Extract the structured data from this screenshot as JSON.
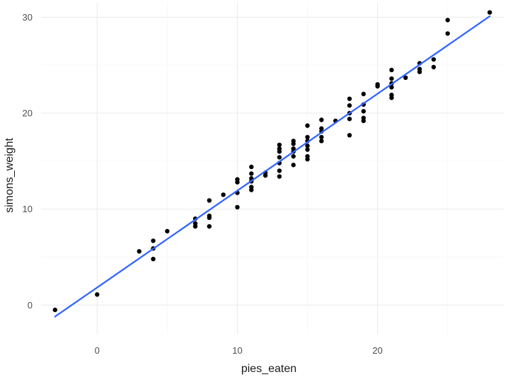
{
  "chart_data": {
    "type": "scatter",
    "title": "",
    "xlabel": "pies_eaten",
    "ylabel": "simons_weight",
    "xlim": [
      -4,
      29
    ],
    "ylim": [
      -3,
      31.5
    ],
    "x_ticks": [
      0,
      10,
      20
    ],
    "y_ticks": [
      0,
      10,
      20,
      30
    ],
    "x_minor_ticks": [
      -5,
      5,
      15,
      25
    ],
    "y_minor_ticks": [
      5,
      15,
      25
    ],
    "grid": true,
    "point_color": "#000000",
    "line_color": "#3366FF",
    "points": [
      {
        "x": -3,
        "y": -0.5
      },
      {
        "x": 0,
        "y": 1.1
      },
      {
        "x": 3,
        "y": 5.6
      },
      {
        "x": 4,
        "y": 4.8
      },
      {
        "x": 4,
        "y": 5.9
      },
      {
        "x": 4,
        "y": 6.7
      },
      {
        "x": 5,
        "y": 7.7
      },
      {
        "x": 7,
        "y": 8.2
      },
      {
        "x": 7,
        "y": 8.5
      },
      {
        "x": 7,
        "y": 9.0
      },
      {
        "x": 8,
        "y": 8.2
      },
      {
        "x": 8,
        "y": 9.1
      },
      {
        "x": 8,
        "y": 9.3
      },
      {
        "x": 8,
        "y": 10.9
      },
      {
        "x": 9,
        "y": 11.5
      },
      {
        "x": 10,
        "y": 10.2
      },
      {
        "x": 10,
        "y": 11.7
      },
      {
        "x": 10,
        "y": 12.8
      },
      {
        "x": 10,
        "y": 13.1
      },
      {
        "x": 11,
        "y": 12.0
      },
      {
        "x": 11,
        "y": 12.3
      },
      {
        "x": 11,
        "y": 12.9
      },
      {
        "x": 11,
        "y": 13.2
      },
      {
        "x": 11,
        "y": 13.7
      },
      {
        "x": 11,
        "y": 14.4
      },
      {
        "x": 12,
        "y": 13.5
      },
      {
        "x": 12,
        "y": 13.8
      },
      {
        "x": 13,
        "y": 13.4
      },
      {
        "x": 13,
        "y": 14.0
      },
      {
        "x": 13,
        "y": 14.8
      },
      {
        "x": 13,
        "y": 15.4
      },
      {
        "x": 13,
        "y": 16.0
      },
      {
        "x": 13,
        "y": 16.3
      },
      {
        "x": 13,
        "y": 16.7
      },
      {
        "x": 14,
        "y": 14.6
      },
      {
        "x": 14,
        "y": 15.5
      },
      {
        "x": 14,
        "y": 16.0
      },
      {
        "x": 14,
        "y": 16.3
      },
      {
        "x": 14,
        "y": 16.8
      },
      {
        "x": 14,
        "y": 17.1
      },
      {
        "x": 15,
        "y": 15.2
      },
      {
        "x": 15,
        "y": 15.5
      },
      {
        "x": 15,
        "y": 16.2
      },
      {
        "x": 15,
        "y": 16.6
      },
      {
        "x": 15,
        "y": 17.1
      },
      {
        "x": 15,
        "y": 17.5
      },
      {
        "x": 15,
        "y": 18.7
      },
      {
        "x": 16,
        "y": 17.1
      },
      {
        "x": 16,
        "y": 17.5
      },
      {
        "x": 16,
        "y": 18.1
      },
      {
        "x": 16,
        "y": 18.4
      },
      {
        "x": 16,
        "y": 19.3
      },
      {
        "x": 17,
        "y": 19.2
      },
      {
        "x": 18,
        "y": 17.7
      },
      {
        "x": 18,
        "y": 19.4
      },
      {
        "x": 18,
        "y": 20.0
      },
      {
        "x": 18,
        "y": 20.8
      },
      {
        "x": 18,
        "y": 21.5
      },
      {
        "x": 19,
        "y": 19.2
      },
      {
        "x": 19,
        "y": 19.5
      },
      {
        "x": 19,
        "y": 20.2
      },
      {
        "x": 19,
        "y": 20.9
      },
      {
        "x": 19,
        "y": 22.0
      },
      {
        "x": 20,
        "y": 22.8
      },
      {
        "x": 20,
        "y": 23.0
      },
      {
        "x": 21,
        "y": 21.6
      },
      {
        "x": 21,
        "y": 21.9
      },
      {
        "x": 21,
        "y": 22.7
      },
      {
        "x": 21,
        "y": 23.1
      },
      {
        "x": 21,
        "y": 23.6
      },
      {
        "x": 21,
        "y": 24.5
      },
      {
        "x": 22,
        "y": 23.7
      },
      {
        "x": 23,
        "y": 24.3
      },
      {
        "x": 23,
        "y": 24.6
      },
      {
        "x": 23,
        "y": 25.2
      },
      {
        "x": 24,
        "y": 24.8
      },
      {
        "x": 24,
        "y": 25.6
      },
      {
        "x": 25,
        "y": 28.3
      },
      {
        "x": 25,
        "y": 29.7
      },
      {
        "x": 28,
        "y": 30.5
      }
    ],
    "fit_line": {
      "x": [
        -3,
        28
      ],
      "y": [
        -1.2,
        30.1
      ]
    }
  }
}
